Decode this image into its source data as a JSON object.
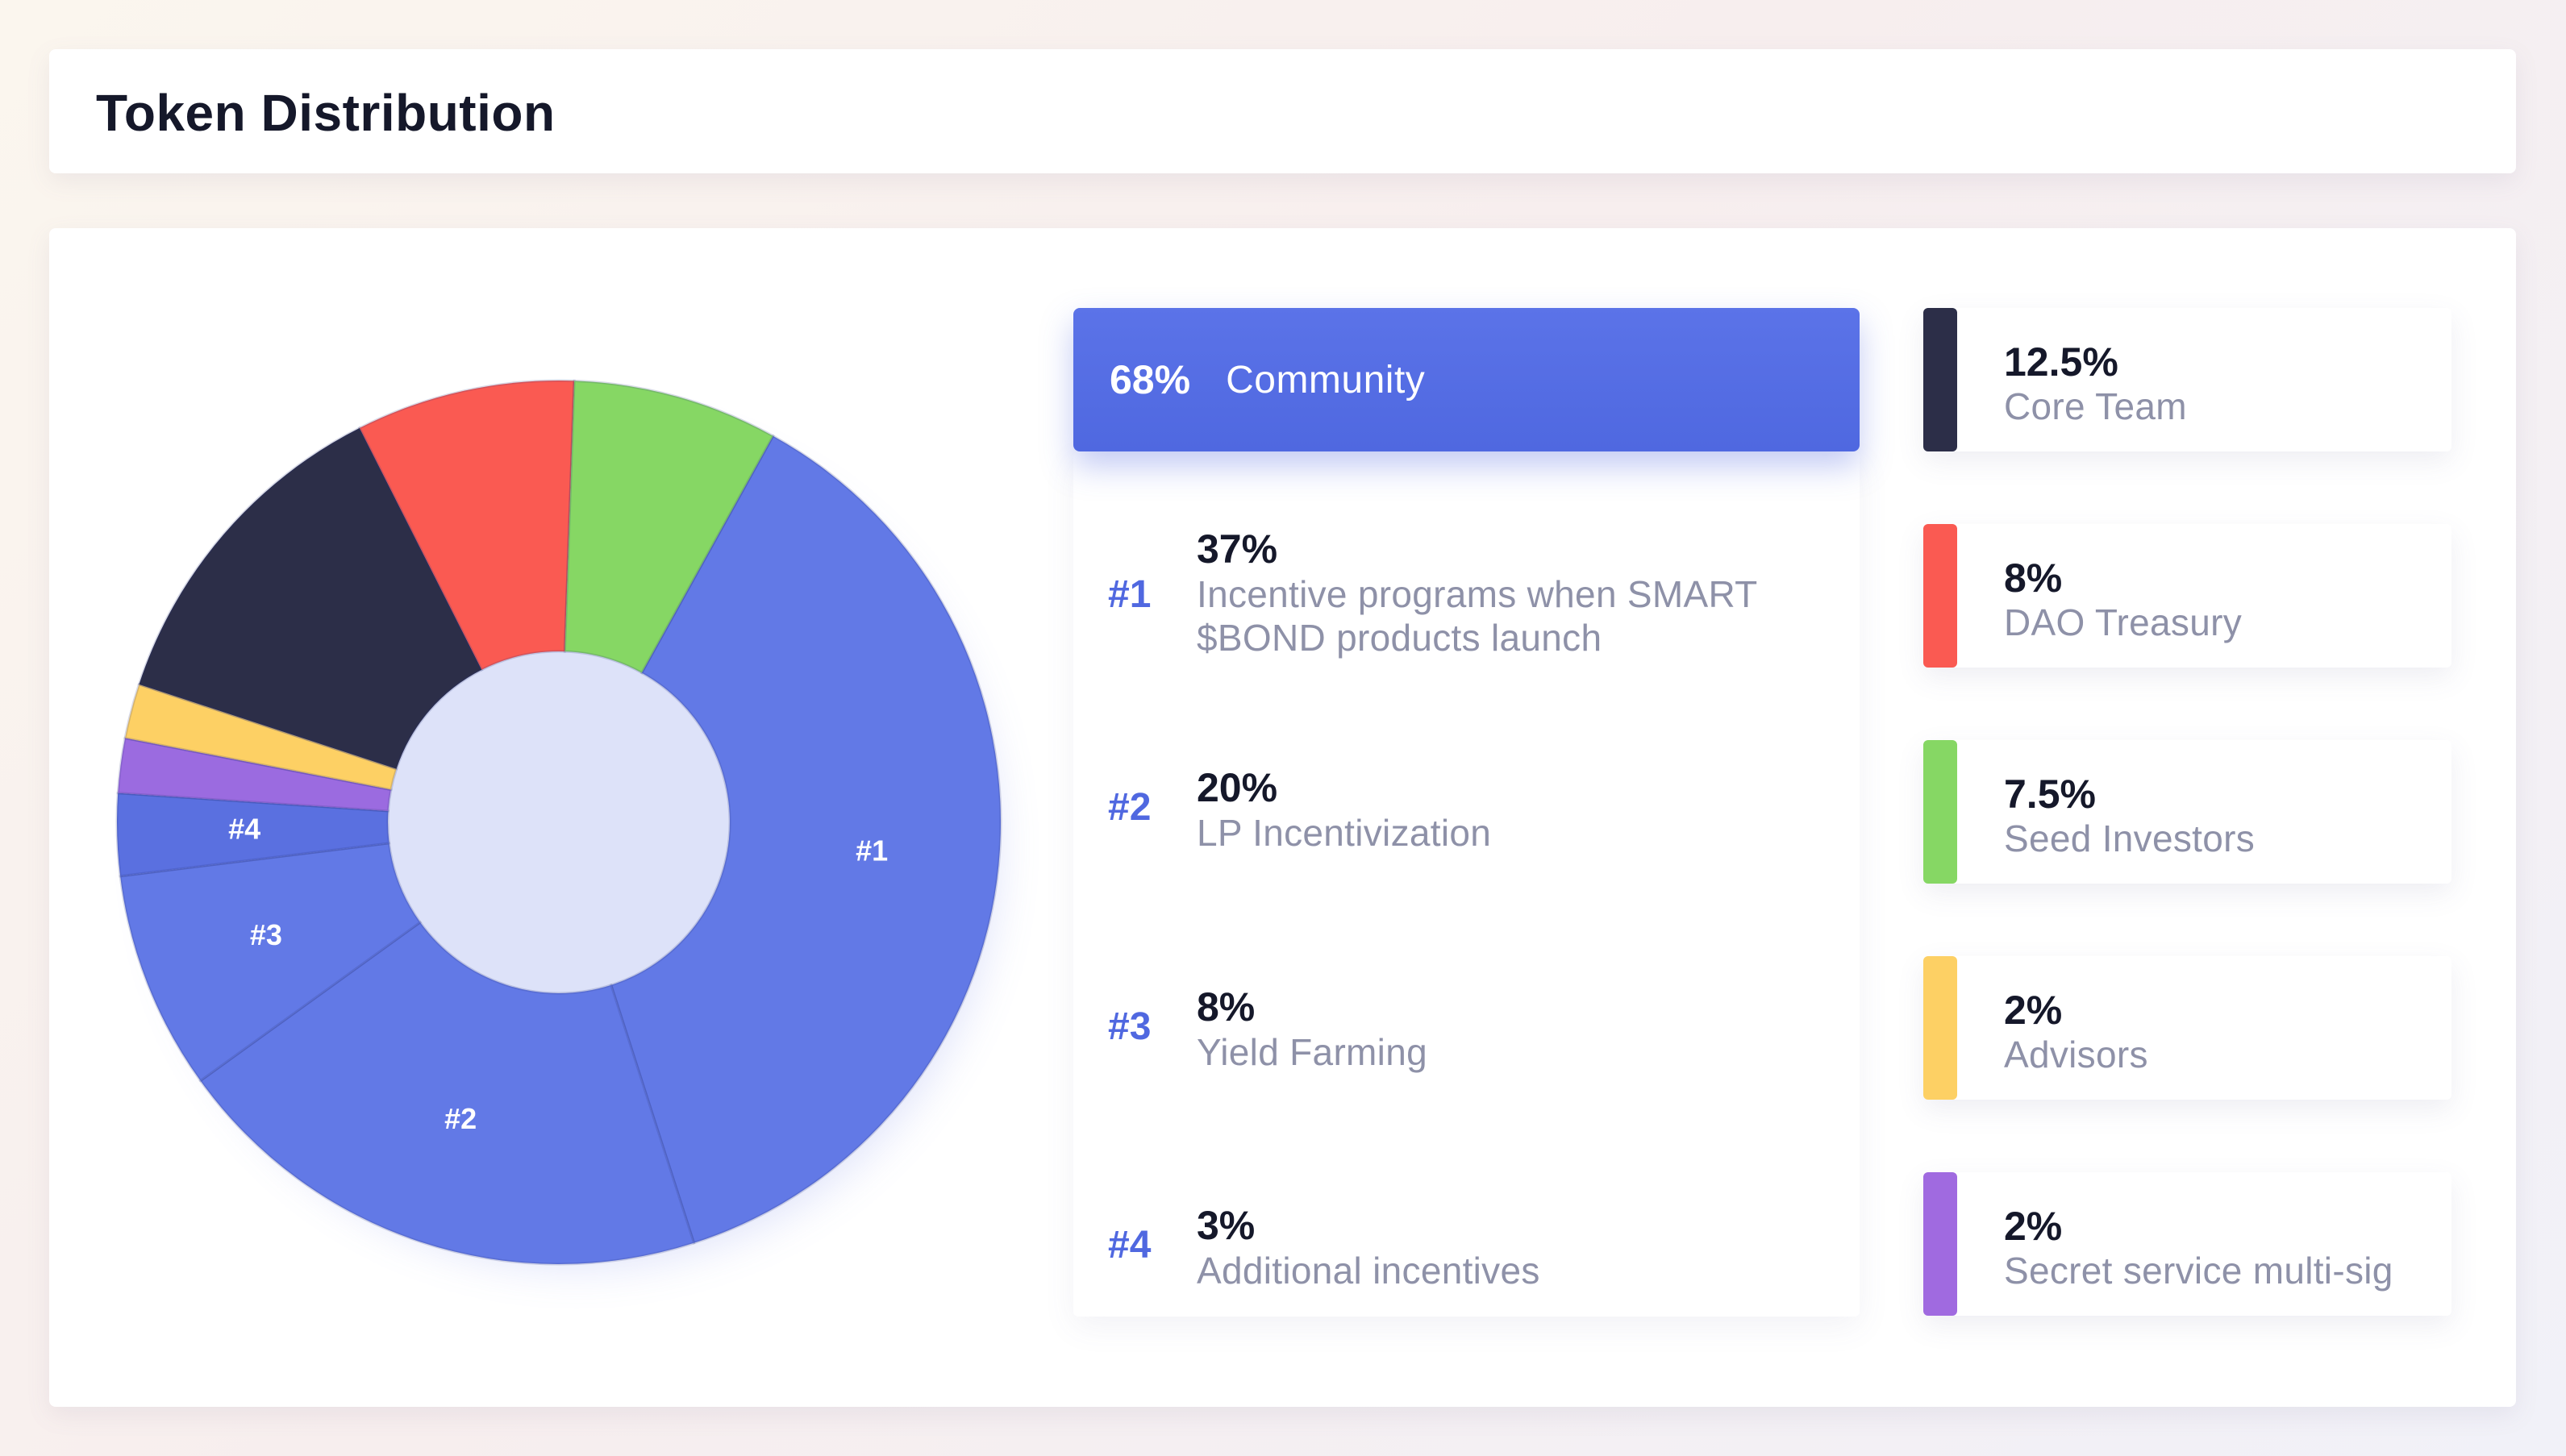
{
  "header": {
    "title": "Token Distribution"
  },
  "community": {
    "percent": "68%",
    "label": "Community",
    "items": [
      {
        "rank": "#1",
        "percent": "37%",
        "label_line1": "Incentive programs when SMART",
        "label_line2": "$BOND products launch"
      },
      {
        "rank": "#2",
        "percent": "20%",
        "label_line1": "LP Incentivization",
        "label_line2": ""
      },
      {
        "rank": "#3",
        "percent": "8%",
        "label_line1": "Yield Farming",
        "label_line2": ""
      },
      {
        "rank": "#4",
        "percent": "3%",
        "label_line1": "Additional incentives",
        "label_line2": ""
      }
    ]
  },
  "legend": [
    {
      "percent": "12.5%",
      "label": "Core Team",
      "color": "#2c2e48"
    },
    {
      "percent": "8%",
      "label": "DAO Treasury",
      "color": "#fa5a52"
    },
    {
      "percent": "7.5%",
      "label": "Seed Investors",
      "color": "#86d764"
    },
    {
      "percent": "2%",
      "label": "Advisors",
      "color": "#fdd064"
    },
    {
      "percent": "2%",
      "label": "Secret service multi-sig",
      "color": "#a06ae0"
    }
  ],
  "chart_data": {
    "type": "pie",
    "variant": "donut",
    "title": "Token Distribution",
    "categories": [
      "#1 Incentive programs",
      "#2 LP Incentivization",
      "#3 Yield Farming",
      "#4 Additional incentives",
      "Secret service multi-sig",
      "Advisors",
      "Core Team",
      "DAO Treasury",
      "Seed Investors"
    ],
    "slice_labels": [
      "#1",
      "#2",
      "#3",
      "#4",
      "",
      "",
      "",
      "",
      ""
    ],
    "values": [
      37,
      20,
      8,
      3,
      2,
      2,
      12.5,
      8,
      7.5
    ],
    "colors": [
      "#6279e6",
      "#6279e6",
      "#6279e6",
      "#5a70e0",
      "#9b6be0",
      "#fdd064",
      "#2c2e48",
      "#fa5a52",
      "#86d764"
    ],
    "group": {
      "name": "Community",
      "value": 68,
      "members": [
        "#1",
        "#2",
        "#3",
        "#4"
      ]
    },
    "start_angle_deg": -61,
    "unit": "%"
  }
}
